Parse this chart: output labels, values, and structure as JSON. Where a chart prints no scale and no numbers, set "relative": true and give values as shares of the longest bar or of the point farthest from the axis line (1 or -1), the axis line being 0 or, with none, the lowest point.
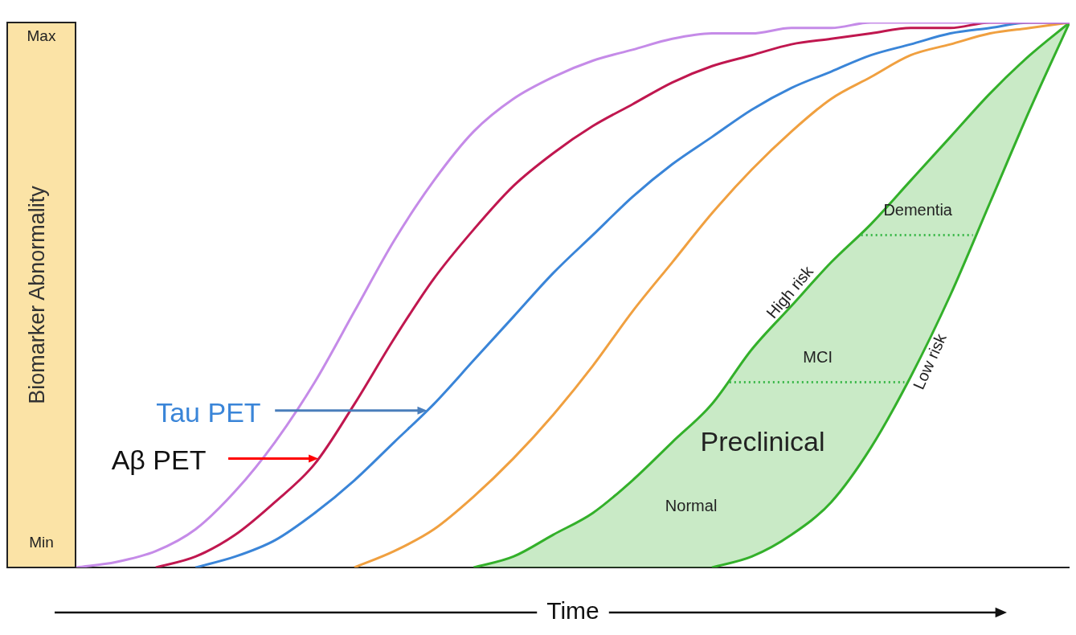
{
  "chart_data": {
    "type": "line",
    "ylabel": "Biomarker Abnormality",
    "xlabel": "Time",
    "categories": [
      null,
      null,
      null,
      null,
      null,
      null,
      null,
      null,
      null,
      null,
      null,
      null,
      null,
      null,
      null,
      null,
      null,
      null,
      null,
      null,
      null,
      null,
      null,
      null,
      null,
      null
    ],
    "relative": true,
    "tick_labels": false,
    "grid": false,
    "legend": false,
    "marker": "none",
    "series": [
      {
        "color": "#c58be8",
        "values": [
          0,
          0.01,
          0.03,
          0.07,
          0.14,
          0.23,
          0.34,
          0.47,
          0.6,
          0.71,
          0.8,
          0.86,
          0.9,
          0.93,
          0.95,
          0.97,
          0.98,
          0.98,
          0.99,
          0.99,
          1,
          1,
          1,
          1,
          1,
          1
        ]
      },
      {
        "name": "Aβ PET",
        "color": "#c0174f",
        "values": [
          null,
          null,
          0,
          0.02,
          0.06,
          0.12,
          0.19,
          0.3,
          0.42,
          0.53,
          0.62,
          0.7,
          0.76,
          0.81,
          0.85,
          0.89,
          0.92,
          0.94,
          0.96,
          0.97,
          0.98,
          0.99,
          0.99,
          1,
          1,
          1
        ]
      },
      {
        "name": "Tau PET",
        "color": "#3a85d8",
        "values": [
          null,
          null,
          null,
          0,
          0.02,
          0.05,
          0.1,
          0.16,
          0.23,
          0.3,
          0.38,
          0.46,
          0.54,
          0.61,
          0.68,
          0.74,
          0.79,
          0.84,
          0.88,
          0.91,
          0.94,
          0.96,
          0.98,
          0.99,
          1,
          1
        ]
      },
      {
        "color": "#f0a040",
        "values": [
          null,
          null,
          null,
          null,
          null,
          null,
          null,
          0,
          0.03,
          0.07,
          0.13,
          0.2,
          0.28,
          0.37,
          0.47,
          0.56,
          0.65,
          0.73,
          0.8,
          0.86,
          0.9,
          0.94,
          0.96,
          0.98,
          0.99,
          1
        ]
      },
      {
        "name": "High risk",
        "type": "area",
        "color": "#33b02a",
        "values": [
          null,
          null,
          null,
          null,
          null,
          null,
          null,
          null,
          null,
          null,
          0,
          0.02,
          0.06,
          0.1,
          0.16,
          0.23,
          0.3,
          0.4,
          0.48,
          0.56,
          0.63,
          0.71,
          0.79,
          0.87,
          0.94,
          1
        ]
      },
      {
        "name": "Low risk",
        "color": "#33b02a",
        "values": [
          null,
          null,
          null,
          null,
          null,
          null,
          null,
          null,
          null,
          null,
          null,
          null,
          null,
          null,
          null,
          null,
          0,
          0.02,
          0.06,
          0.12,
          0.22,
          0.35,
          0.5,
          0.67,
          0.84,
          1
        ]
      }
    ],
    "ref_lines": [
      {
        "axis": "y",
        "value": 0.34,
        "label": "MCI",
        "color": "#3cb84a",
        "line_style": "dotted"
      },
      {
        "axis": "y",
        "value": 0.61,
        "label": "Dementia",
        "color": "#3cb84a",
        "line_style": "dotted"
      }
    ],
    "annotations": [
      "Preclinical",
      "Normal",
      "Min",
      "Max"
    ]
  }
}
